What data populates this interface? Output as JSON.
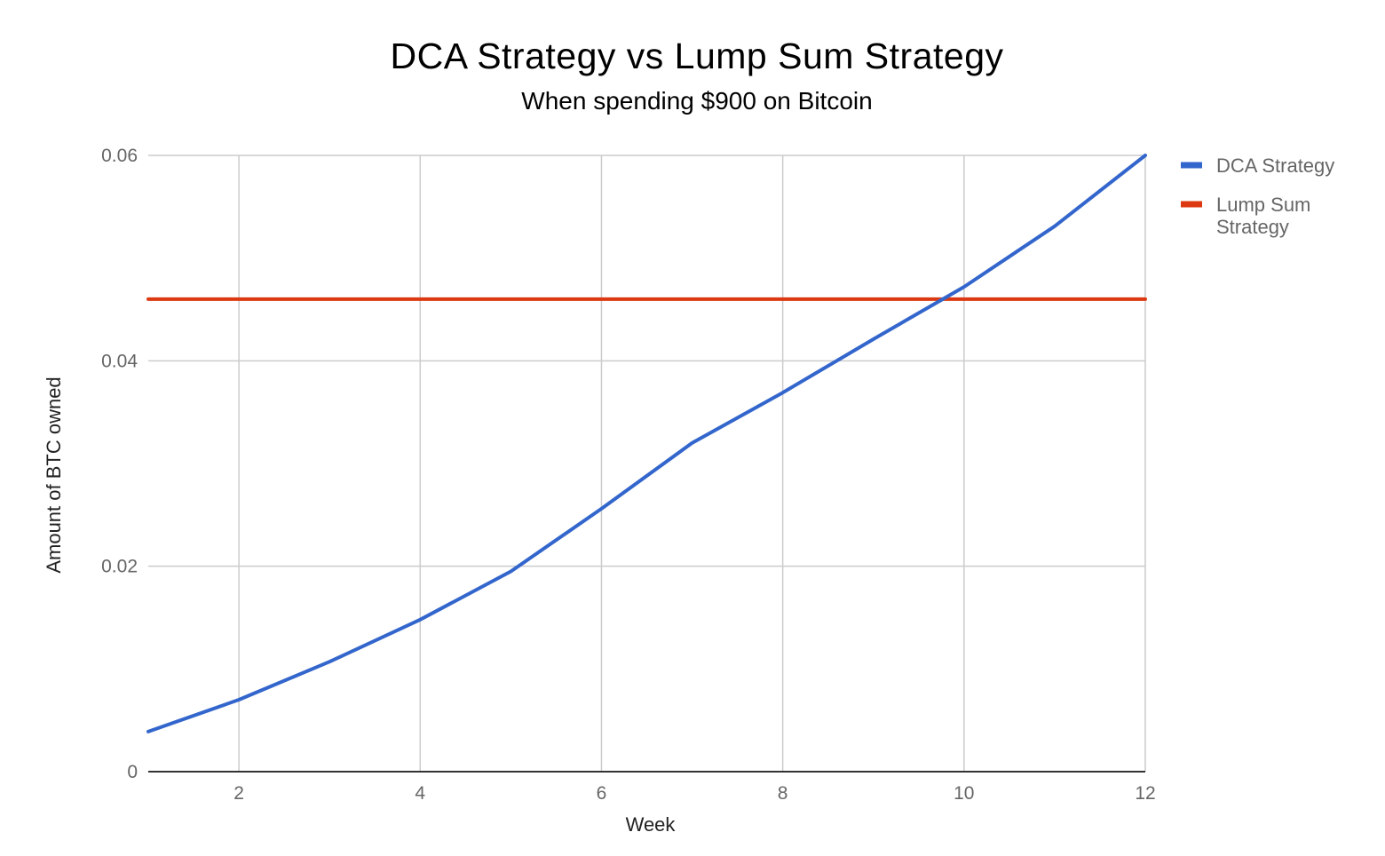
{
  "chart_data": {
    "type": "line",
    "title": "DCA Strategy vs Lump Sum Strategy",
    "subtitle": "When spending $900 on Bitcoin",
    "xlabel": "Week",
    "ylabel": "Amount of BTC owned",
    "xlim": [
      1,
      12
    ],
    "ylim": [
      0,
      0.06
    ],
    "x_ticks": [
      2,
      4,
      6,
      8,
      10,
      12
    ],
    "y_ticks": [
      0,
      0.02,
      0.04,
      0.06
    ],
    "x_tick_labels": [
      "2",
      "4",
      "6",
      "8",
      "10",
      "12"
    ],
    "y_tick_labels": [
      "0",
      "0.02",
      "0.04",
      "0.06"
    ],
    "grid": true,
    "legend_position": "right",
    "x": [
      1,
      2,
      3,
      4,
      5,
      6,
      7,
      8,
      9,
      10,
      11,
      12
    ],
    "series": [
      {
        "name": "DCA Strategy",
        "legend_lines": [
          "DCA Strategy"
        ],
        "color": "#3366cc",
        "values": [
          0.0039,
          0.007,
          0.0107,
          0.0148,
          0.0195,
          0.0256,
          0.032,
          0.0369,
          0.0421,
          0.0472,
          0.0531,
          0.06
        ]
      },
      {
        "name": "Lump Sum Strategy",
        "legend_lines": [
          "Lump Sum",
          "Strategy"
        ],
        "color": "#dc3912",
        "values": [
          0.046,
          0.046,
          0.046,
          0.046,
          0.046,
          0.046,
          0.046,
          0.046,
          0.046,
          0.046,
          0.046,
          0.046
        ]
      }
    ]
  }
}
